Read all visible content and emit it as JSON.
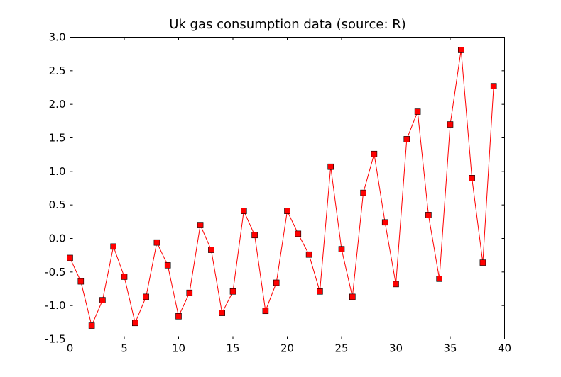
{
  "chart_data": {
    "type": "line",
    "title": "Uk gas consumption data (source: R)",
    "xlabel": "",
    "ylabel": "",
    "xlim": [
      0,
      40
    ],
    "ylim": [
      -1.5,
      3.0
    ],
    "xticks": [
      0,
      5,
      10,
      15,
      20,
      25,
      30,
      35,
      40
    ],
    "yticks": [
      -1.5,
      -1.0,
      -0.5,
      0.0,
      0.5,
      1.0,
      1.5,
      2.0,
      2.5,
      3.0
    ],
    "xtick_labels": [
      "0",
      "5",
      "10",
      "15",
      "20",
      "25",
      "30",
      "35",
      "40"
    ],
    "ytick_labels": [
      "-1.5",
      "-1.0",
      "-0.5",
      "0.0",
      "0.5",
      "1.0",
      "1.5",
      "2.0",
      "2.5",
      "3.0"
    ],
    "grid": false,
    "legend": "none",
    "series": [
      {
        "color": "#ff0000",
        "marker": "square",
        "x": [
          0,
          1,
          2,
          3,
          4,
          5,
          6,
          7,
          8,
          9,
          10,
          11,
          12,
          13,
          14,
          15,
          16,
          17,
          18,
          19,
          20,
          21,
          22,
          23,
          24,
          25,
          26,
          27,
          28,
          29,
          30,
          31,
          32,
          33,
          34,
          35,
          36,
          37,
          38,
          39
        ],
        "values": [
          -0.29,
          -0.64,
          -1.3,
          -0.92,
          -0.12,
          -0.57,
          -1.26,
          -0.87,
          -0.06,
          -0.4,
          -1.16,
          -0.81,
          0.2,
          -0.17,
          -1.11,
          -0.79,
          0.41,
          0.05,
          -1.08,
          -0.66,
          0.41,
          0.07,
          -0.24,
          -0.79,
          1.07,
          -0.16,
          -0.87,
          0.68,
          1.26,
          0.24,
          -0.68,
          1.48,
          1.89,
          0.35,
          -0.6,
          1.7,
          2.81,
          0.9,
          -0.36,
          2.27
        ]
      }
    ]
  }
}
